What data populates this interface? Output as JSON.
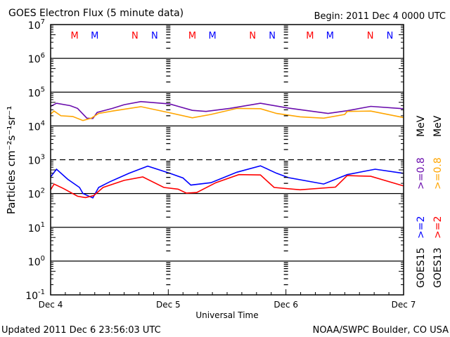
{
  "chart_data": {
    "type": "line",
    "title": "GOES Electron Flux (5 minute data)",
    "begin_label": "Begin: 2011 Dec 4 0000 UTC",
    "xlabel": "Universal Time",
    "ylabel": "Particles cm⁻²s⁻¹sr⁻¹",
    "x_unit": "hours since begin",
    "xlim": [
      0,
      72
    ],
    "x_ticks": [
      {
        "h": 0,
        "label": "Dec 4"
      },
      {
        "h": 24,
        "label": "Dec 5"
      },
      {
        "h": 48,
        "label": "Dec 6"
      },
      {
        "h": 72,
        "label": "Dec 7"
      }
    ],
    "yscale": "log",
    "ylim_exp": [
      -1,
      7
    ],
    "y_tick_exponents": [
      7,
      6,
      5,
      4,
      3,
      2,
      1,
      0,
      -1
    ],
    "y_tick_base": "10",
    "threshold_exp": 3,
    "grid": "horizontal at each decade",
    "markers": [
      {
        "label": "M",
        "color": "#ff0000",
        "h": [
          4.9,
          28.9,
          52.9
        ]
      },
      {
        "label": "M",
        "color": "#0000ff",
        "h": [
          9.0,
          33.0,
          57.0
        ]
      },
      {
        "label": "N",
        "color": "#ff0000",
        "h": [
          17.2,
          41.2,
          65.2
        ]
      },
      {
        "label": "N",
        "color": "#0000ff",
        "h": [
          21.2,
          45.2,
          69.2
        ]
      }
    ],
    "series": [
      {
        "name": "GOES15 >=0.8 MeV",
        "satellite": "GOES15",
        "energy": ">=0.8",
        "unit": "MeV",
        "color": "#6a0dad",
        "points": [
          [
            0,
            4.58
          ],
          [
            1.2,
            4.67
          ],
          [
            4,
            4.6
          ],
          [
            5.5,
            4.52
          ],
          [
            7.4,
            4.23
          ],
          [
            8.6,
            4.22
          ],
          [
            9.5,
            4.4
          ],
          [
            12.6,
            4.52
          ],
          [
            15,
            4.63
          ],
          [
            18.4,
            4.72
          ],
          [
            24.3,
            4.65
          ],
          [
            28.9,
            4.46
          ],
          [
            31.7,
            4.43
          ],
          [
            36.5,
            4.52
          ],
          [
            42.8,
            4.67
          ],
          [
            48.5,
            4.53
          ],
          [
            56.6,
            4.37
          ],
          [
            60.5,
            4.45
          ],
          [
            65.3,
            4.58
          ],
          [
            71.9,
            4.51
          ]
        ]
      },
      {
        "name": "GOES13 >=0.8 MeV",
        "satellite": "GOES13",
        "energy": ">=0.8",
        "unit": "MeV",
        "color": "#ffa500",
        "points": [
          [
            0,
            4.35
          ],
          [
            0.7,
            4.44
          ],
          [
            2.1,
            4.3
          ],
          [
            4.5,
            4.28
          ],
          [
            6.6,
            4.16
          ],
          [
            8.3,
            4.23
          ],
          [
            9.8,
            4.37
          ],
          [
            12.6,
            4.44
          ],
          [
            18.4,
            4.57
          ],
          [
            24.3,
            4.39
          ],
          [
            28.9,
            4.24
          ],
          [
            32.7,
            4.34
          ],
          [
            38,
            4.52
          ],
          [
            42.8,
            4.51
          ],
          [
            46.1,
            4.37
          ],
          [
            50.9,
            4.27
          ],
          [
            55.7,
            4.23
          ],
          [
            60,
            4.34
          ],
          [
            60.5,
            4.43
          ],
          [
            65.3,
            4.44
          ],
          [
            71.9,
            4.25
          ]
        ]
      },
      {
        "name": "GOES15 >=2 MeV",
        "satellite": "GOES15",
        "energy": ">=2",
        "unit": "MeV",
        "color": "#0000ff",
        "points": [
          [
            0,
            2.49
          ],
          [
            1.2,
            2.72
          ],
          [
            3.5,
            2.42
          ],
          [
            5.9,
            2.18
          ],
          [
            6.6,
            2.0
          ],
          [
            8.6,
            1.87
          ],
          [
            9.8,
            2.18
          ],
          [
            12.1,
            2.35
          ],
          [
            16,
            2.6
          ],
          [
            19.8,
            2.81
          ],
          [
            24.3,
            2.6
          ],
          [
            27,
            2.46
          ],
          [
            28.6,
            2.25
          ],
          [
            32.7,
            2.32
          ],
          [
            38,
            2.63
          ],
          [
            42.8,
            2.82
          ],
          [
            46.1,
            2.6
          ],
          [
            48.5,
            2.47
          ],
          [
            55.7,
            2.28
          ],
          [
            60.5,
            2.56
          ],
          [
            66.2,
            2.72
          ],
          [
            71.9,
            2.6
          ]
        ]
      },
      {
        "name": "GOES13 >=2 MeV",
        "satellite": "GOES13",
        "energy": ">=2",
        "unit": "MeV",
        "color": "#ff0000",
        "points": [
          [
            0,
            2.11
          ],
          [
            0.7,
            2.28
          ],
          [
            2.6,
            2.15
          ],
          [
            5.5,
            1.92
          ],
          [
            7.1,
            1.88
          ],
          [
            8.8,
            1.94
          ],
          [
            10.7,
            2.18
          ],
          [
            15,
            2.39
          ],
          [
            18.8,
            2.49
          ],
          [
            23.1,
            2.18
          ],
          [
            26,
            2.13
          ],
          [
            27.7,
            2.01
          ],
          [
            29.8,
            2.03
          ],
          [
            33.7,
            2.32
          ],
          [
            38.4,
            2.56
          ],
          [
            42.8,
            2.55
          ],
          [
            45.6,
            2.18
          ],
          [
            50.9,
            2.11
          ],
          [
            58.1,
            2.19
          ],
          [
            60.5,
            2.53
          ],
          [
            65.3,
            2.51
          ],
          [
            71.9,
            2.23
          ]
        ]
      }
    ]
  },
  "footer": {
    "updated": "Updated 2011 Dec  6 23:56:03 UTC",
    "credit": "NOAA/SWPC Boulder, CO USA"
  }
}
